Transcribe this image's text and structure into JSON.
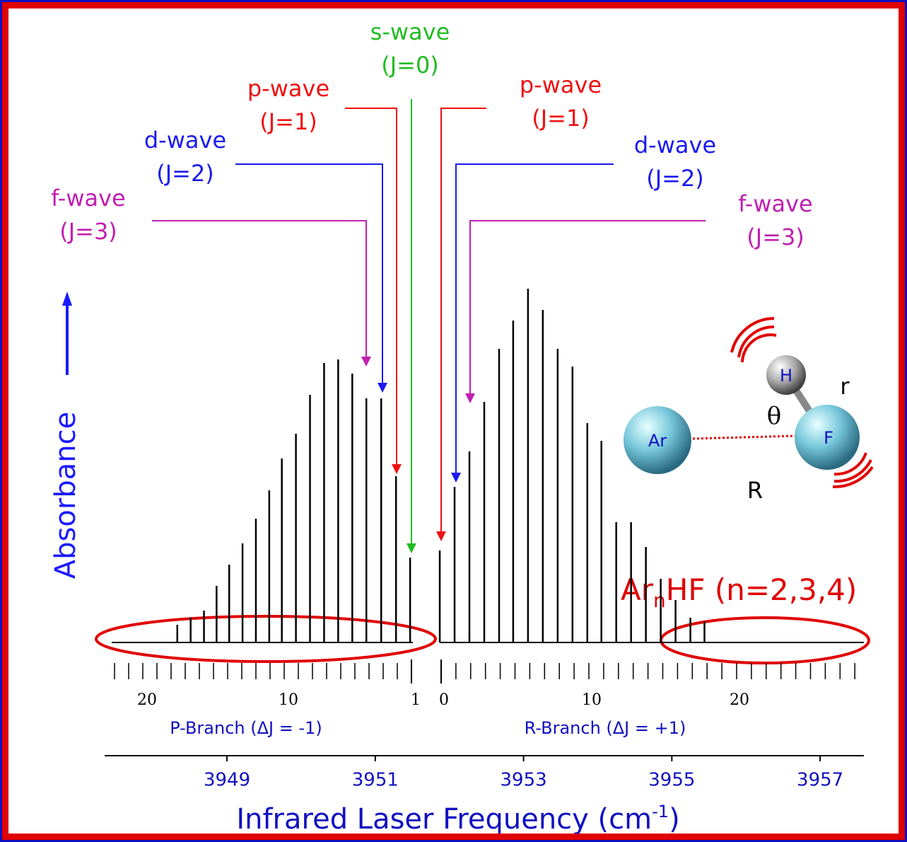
{
  "chart_data": {
    "type": "spectrum",
    "y_label": "Absorbance",
    "x_label": "Infrared Laser Frequency (cm",
    "x_label_sup": "-1",
    "x_label_end": ")",
    "xlim": [
      3947.35,
      3957.59
    ],
    "xticks": [
      3949,
      3951,
      3953,
      3955,
      3957
    ],
    "ylim": [
      0,
      100
    ],
    "series": [
      {
        "name": "P-Branch (ΔJ = -1)",
        "color": "#000000",
        "x": [
          3951.47,
          3951.28,
          3951.08,
          3950.88,
          3950.69,
          3950.5,
          3950.31,
          3950.12,
          3949.93,
          3949.74,
          3949.57,
          3949.39,
          3949.21,
          3949.03,
          3948.86,
          3948.69,
          3948.51,
          3948.33
        ],
        "values": [
          24,
          47,
          69,
          69,
          76,
          80,
          79,
          70,
          59,
          52,
          43,
          35,
          28,
          22,
          16,
          9,
          7,
          5
        ],
        "j_ticks": [
          20,
          10,
          1
        ]
      },
      {
        "name": "R-Branch (ΔJ = +1)",
        "color": "#000000",
        "x": [
          3951.87,
          3952.07,
          3952.27,
          3952.47,
          3952.67,
          3952.86,
          3953.06,
          3953.26,
          3953.46,
          3953.66,
          3953.86,
          3954.05,
          3954.25,
          3954.45,
          3954.65,
          3954.85,
          3955.05,
          3955.25,
          3955.44
        ],
        "values": [
          26,
          44,
          54,
          68,
          83,
          91,
          100,
          94,
          83,
          78,
          62,
          57,
          34,
          34,
          27,
          18,
          12,
          7,
          6
        ],
        "j_ticks": [
          0,
          10,
          20
        ]
      }
    ],
    "annotations": [
      {
        "text": "s-wave",
        "sub": "(J=0)",
        "color": "#22bb22"
      },
      {
        "text": "p-wave",
        "sub": "(J=1)",
        "color": "#ee1111"
      },
      {
        "text": "d-wave",
        "sub": "(J=2)",
        "color": "#1a1aee"
      },
      {
        "text": "f-wave",
        "sub": "(J=3)",
        "color": "#c020b0"
      },
      {
        "text": "p-wave",
        "sub": "(J=1)",
        "color": "#ee1111"
      },
      {
        "text": "d-wave",
        "sub": "(J=2)",
        "color": "#1a1aee"
      },
      {
        "text": "f-wave",
        "sub": "(J=3)",
        "color": "#c020b0"
      }
    ],
    "cluster_label": {
      "base": "Ar",
      "sub": "n",
      "rest": "HF (n=2,3,4)"
    },
    "molecule": {
      "atoms": [
        "Ar",
        "H",
        "F"
      ],
      "labels": [
        "θ",
        "r",
        "R"
      ]
    }
  }
}
